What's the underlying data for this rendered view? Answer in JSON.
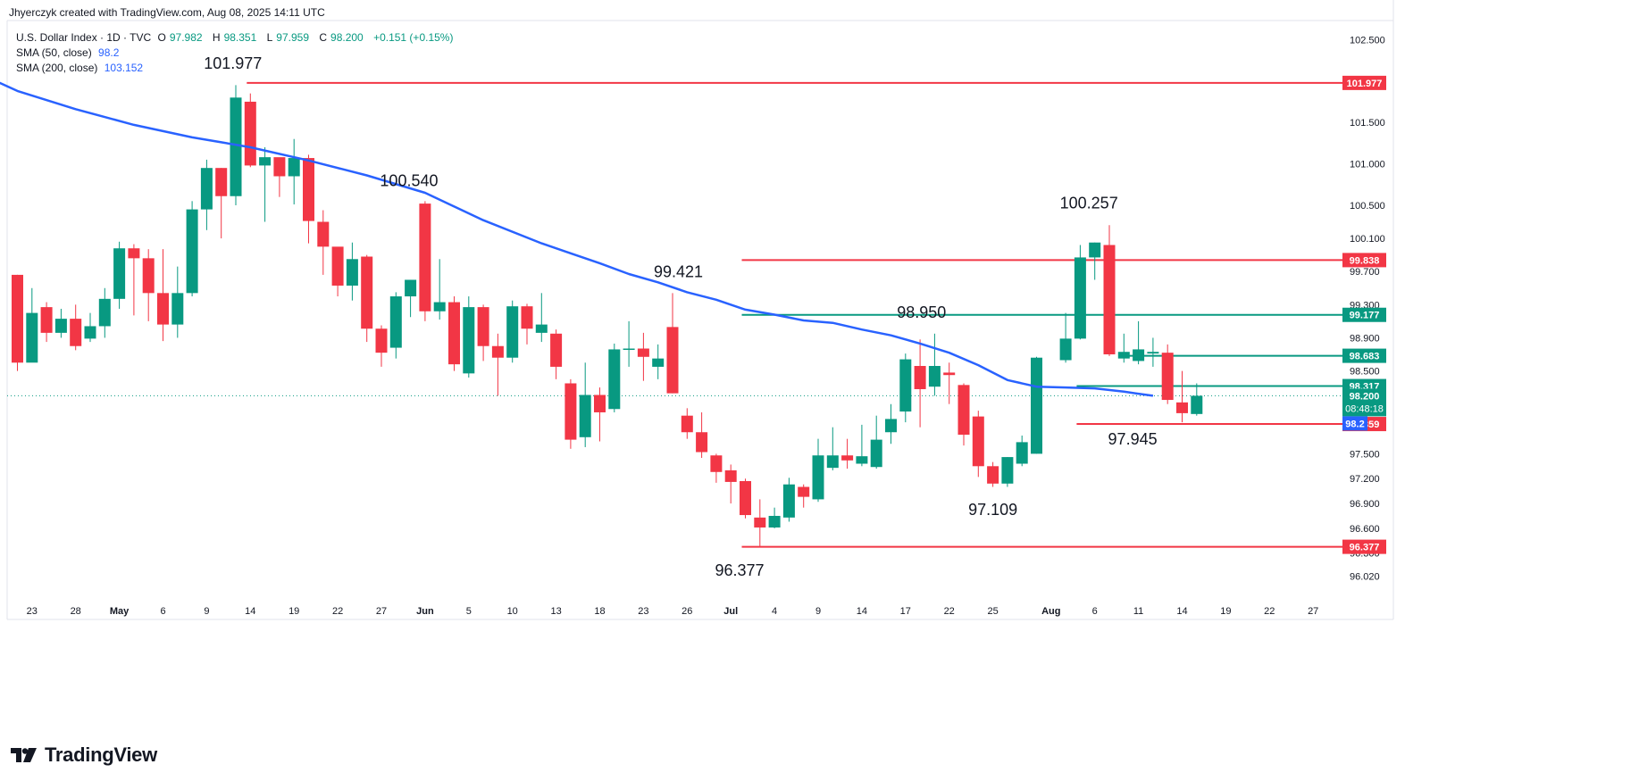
{
  "header": {
    "text": "Jhyerczyk created with TradingView.com, Aug 08, 2025 14:11 UTC"
  },
  "legend": {
    "symbol": "U.S. Dollar Index · 1D · TVC",
    "ohlc": {
      "o_label": "O",
      "o": "97.982",
      "h_label": "H",
      "h": "98.351",
      "l_label": "L",
      "l": "97.959",
      "c_label": "C",
      "c": "98.200",
      "change": "+0.151 (+0.15%)"
    },
    "sma50": {
      "label": "SMA (50, close)",
      "value": "98.2"
    },
    "sma200": {
      "label": "SMA (200, close)",
      "value": "103.152"
    }
  },
  "footer": {
    "brand": "TradingView"
  },
  "colors": {
    "up": "#089981",
    "down": "#f23645",
    "sma": "#2962ff",
    "grid": "#f0f3fa",
    "axis_text": "#131722"
  },
  "chart_data": {
    "type": "candlestick",
    "title": "U.S. Dollar Index · 1D · TVC",
    "ylim": [
      95.78,
      102.73
    ],
    "y_ticks": [
      102.5,
      102.0,
      101.5,
      101.0,
      100.5,
      100.1,
      99.7,
      99.3,
      98.9,
      98.5,
      97.5,
      97.2,
      96.9,
      96.6,
      96.3,
      96.02
    ],
    "y_tick_labels": [
      "102.500",
      "102.000",
      "101.500",
      "101.000",
      "100.500",
      "100.100",
      "99.700",
      "99.300",
      "98.900",
      "98.500",
      "97.500",
      "97.200",
      "96.900",
      "96.600",
      "96.300",
      "96.020"
    ],
    "x_ticks": [
      {
        "label": "23",
        "i": 1
      },
      {
        "label": "28",
        "i": 4
      },
      {
        "label": "May",
        "i": 7
      },
      {
        "label": "6",
        "i": 10
      },
      {
        "label": "9",
        "i": 13
      },
      {
        "label": "14",
        "i": 16
      },
      {
        "label": "19",
        "i": 19
      },
      {
        "label": "22",
        "i": 22
      },
      {
        "label": "27",
        "i": 25
      },
      {
        "label": "Jun",
        "i": 28
      },
      {
        "label": "5",
        "i": 31
      },
      {
        "label": "10",
        "i": 34
      },
      {
        "label": "13",
        "i": 37
      },
      {
        "label": "18",
        "i": 40
      },
      {
        "label": "23",
        "i": 43
      },
      {
        "label": "26",
        "i": 46
      },
      {
        "label": "Jul",
        "i": 49
      },
      {
        "label": "4",
        "i": 52
      },
      {
        "label": "9",
        "i": 55
      },
      {
        "label": "14",
        "i": 58
      },
      {
        "label": "17",
        "i": 61
      },
      {
        "label": "22",
        "i": 64
      },
      {
        "label": "25",
        "i": 67
      },
      {
        "label": "Aug",
        "i": 71
      },
      {
        "label": "6",
        "i": 74
      },
      {
        "label": "11",
        "i": 77
      },
      {
        "label": "14",
        "i": 80
      },
      {
        "label": "19",
        "i": 83
      },
      {
        "label": "22",
        "i": 86
      },
      {
        "label": "27",
        "i": 89
      }
    ],
    "candles": [
      [
        99.66,
        98.6,
        99.66,
        98.5
      ],
      [
        98.6,
        99.2,
        99.5,
        98.9
      ],
      [
        99.27,
        98.96,
        99.33,
        98.85
      ],
      [
        98.96,
        99.13,
        99.25,
        98.9
      ],
      [
        99.13,
        98.8,
        99.3,
        98.75
      ],
      [
        98.89,
        99.04,
        99.2,
        98.85
      ],
      [
        99.04,
        99.37,
        99.5,
        98.9
      ],
      [
        99.37,
        99.98,
        100.06,
        99.25
      ],
      [
        99.98,
        99.86,
        100.03,
        99.17
      ],
      [
        99.86,
        99.44,
        99.97,
        99.1
      ],
      [
        99.44,
        99.06,
        99.97,
        98.86
      ],
      [
        99.06,
        99.44,
        99.76,
        98.9
      ],
      [
        99.44,
        100.45,
        100.55,
        99.4
      ],
      [
        100.45,
        100.95,
        101.05,
        100.2
      ],
      [
        100.95,
        100.61,
        100.95,
        100.1
      ],
      [
        100.61,
        101.8,
        101.95,
        100.5
      ],
      [
        101.75,
        100.98,
        101.85,
        100.96
      ],
      [
        100.98,
        101.08,
        101.2,
        100.3
      ],
      [
        101.08,
        100.85,
        101.05,
        100.6
      ],
      [
        100.85,
        101.07,
        101.3,
        100.51
      ],
      [
        101.07,
        100.31,
        101.11,
        100.04
      ],
      [
        100.3,
        100.0,
        100.44,
        99.66
      ],
      [
        100.0,
        99.53,
        99.98,
        99.4
      ],
      [
        99.53,
        99.85,
        100.05,
        99.35
      ],
      [
        99.88,
        99.01,
        99.9,
        98.85
      ],
      [
        99.01,
        98.72,
        99.05,
        98.55
      ],
      [
        98.78,
        99.4,
        99.45,
        98.65
      ],
      [
        99.4,
        99.6,
        99.6,
        99.15
      ],
      [
        100.52,
        99.22,
        100.55,
        99.1
      ],
      [
        99.22,
        99.33,
        99.85,
        99.12
      ],
      [
        99.33,
        98.58,
        99.4,
        98.5
      ],
      [
        98.47,
        99.27,
        99.4,
        98.42
      ],
      [
        99.27,
        98.8,
        99.3,
        98.62
      ],
      [
        98.8,
        98.66,
        98.95,
        98.2
      ],
      [
        98.66,
        99.28,
        99.35,
        98.6
      ],
      [
        99.28,
        99.01,
        99.31,
        98.82
      ],
      [
        98.96,
        99.06,
        99.44,
        98.85
      ],
      [
        98.95,
        98.55,
        99.0,
        98.4
      ],
      [
        98.35,
        97.67,
        98.4,
        97.56
      ],
      [
        97.7,
        98.21,
        98.6,
        97.58
      ],
      [
        98.21,
        98.0,
        98.3,
        97.65
      ],
      [
        98.04,
        98.76,
        98.83,
        98.0
      ],
      [
        98.77,
        98.77,
        99.1,
        98.55
      ],
      [
        98.77,
        98.67,
        98.96,
        98.38
      ],
      [
        98.55,
        98.65,
        98.82,
        98.4
      ],
      [
        99.03,
        98.23,
        99.44,
        98.23
      ],
      [
        97.96,
        97.76,
        98.05,
        97.68
      ],
      [
        97.76,
        97.52,
        98.0,
        97.45
      ],
      [
        97.48,
        97.28,
        97.5,
        97.15
      ],
      [
        97.3,
        97.16,
        97.37,
        96.9
      ],
      [
        97.17,
        96.76,
        97.2,
        96.72
      ],
      [
        96.73,
        96.61,
        96.95,
        96.38
      ],
      [
        96.61,
        96.75,
        96.85,
        96.6
      ],
      [
        96.73,
        97.13,
        97.21,
        96.68
      ],
      [
        97.1,
        96.98,
        97.13,
        96.85
      ],
      [
        96.95,
        97.48,
        97.68,
        96.92
      ],
      [
        97.33,
        97.48,
        97.82,
        97.3
      ],
      [
        97.48,
        97.42,
        97.68,
        97.32
      ],
      [
        97.38,
        97.47,
        97.85,
        97.35
      ],
      [
        97.34,
        97.67,
        97.96,
        97.32
      ],
      [
        97.76,
        97.92,
        98.1,
        97.62
      ],
      [
        98.01,
        98.64,
        98.71,
        97.88
      ],
      [
        98.56,
        98.28,
        98.88,
        97.82
      ],
      [
        98.31,
        98.56,
        98.95,
        98.2
      ],
      [
        98.48,
        98.45,
        98.6,
        98.1
      ],
      [
        98.33,
        97.73,
        98.35,
        97.6
      ],
      [
        97.95,
        97.35,
        98.02,
        97.22
      ],
      [
        97.35,
        97.14,
        97.4,
        97.1
      ],
      [
        97.14,
        97.46,
        97.46,
        97.1
      ],
      [
        97.38,
        97.64,
        97.72,
        97.35
      ],
      [
        97.5,
        98.66,
        98.67,
        97.5
      ],
      [
        98.63,
        98.89,
        99.2,
        98.6
      ],
      [
        98.89,
        99.87,
        100.02,
        98.88
      ],
      [
        99.87,
        100.05,
        100.05,
        99.6
      ],
      [
        100.02,
        98.7,
        100.26,
        98.68
      ],
      [
        98.65,
        98.73,
        98.95,
        98.6
      ],
      [
        98.62,
        98.76,
        99.1,
        98.58
      ],
      [
        98.71,
        98.73,
        98.9,
        98.55
      ],
      [
        98.72,
        98.15,
        98.82,
        98.1
      ],
      [
        98.12,
        97.99,
        98.5,
        97.88
      ],
      [
        97.98,
        98.2,
        98.35,
        97.96
      ]
    ],
    "candle_dates_skip_index": [
      71
    ],
    "sma50_points": [
      [
        -10.5,
        102.73
      ],
      [
        -8,
        102.52
      ],
      [
        -4,
        102.2
      ],
      [
        0,
        101.88
      ],
      [
        4,
        101.66
      ],
      [
        8,
        101.47
      ],
      [
        12,
        101.32
      ],
      [
        14,
        101.26
      ],
      [
        16,
        101.2
      ],
      [
        20,
        101.04
      ],
      [
        24,
        100.86
      ],
      [
        28,
        100.65
      ],
      [
        32,
        100.32
      ],
      [
        36,
        100.04
      ],
      [
        38,
        99.92
      ],
      [
        40,
        99.8
      ],
      [
        42,
        99.67
      ],
      [
        44,
        99.57
      ],
      [
        46,
        99.45
      ],
      [
        48,
        99.36
      ],
      [
        50,
        99.24
      ],
      [
        52,
        99.18
      ],
      [
        54,
        99.11
      ],
      [
        56,
        99.08
      ],
      [
        58,
        99.0
      ],
      [
        60,
        98.93
      ],
      [
        62,
        98.83
      ],
      [
        64,
        98.72
      ],
      [
        66,
        98.57
      ],
      [
        68,
        98.39
      ],
      [
        70,
        98.31
      ],
      [
        72,
        98.3
      ],
      [
        74,
        98.29
      ],
      [
        76,
        98.25
      ],
      [
        78,
        98.2
      ]
    ],
    "levels": [
      {
        "price": 101.977,
        "label": "101.977",
        "color": "#f23645",
        "from": 16
      },
      {
        "price": 99.838,
        "label": "99.838",
        "color": "#f23645",
        "from": 50
      },
      {
        "price": 99.177,
        "label": "99.177",
        "color": "#089981",
        "from": 50
      },
      {
        "price": 98.683,
        "label": "98.683",
        "color": "#089981",
        "from": 76
      },
      {
        "price": 98.317,
        "label": "98.317",
        "color": "#089981",
        "from": 73
      },
      {
        "price": 97.859,
        "label": "97.859",
        "color": "#f23645",
        "from": 73
      },
      {
        "price": 96.377,
        "label": "96.377",
        "color": "#f23645",
        "from": 50
      }
    ],
    "annotations": [
      {
        "text": "101.977",
        "i": 14.8,
        "price": 102.15
      },
      {
        "text": "100.540",
        "i": 26.9,
        "price": 100.73
      },
      {
        "text": "99.421",
        "i": 45.4,
        "price": 99.63
      },
      {
        "text": "98.950",
        "i": 62.1,
        "price": 99.14
      },
      {
        "text": "100.257",
        "i": 73.6,
        "price": 100.46
      },
      {
        "text": "97.945",
        "i": 76.6,
        "price": 97.61
      },
      {
        "text": "97.109",
        "i": 67.0,
        "price": 96.76
      },
      {
        "text": "96.377",
        "i": 49.6,
        "price": 96.03
      }
    ],
    "current": {
      "price": 98.2,
      "label": "98.200",
      "countdown": "08:48:18",
      "sma_label": "98.2"
    }
  }
}
